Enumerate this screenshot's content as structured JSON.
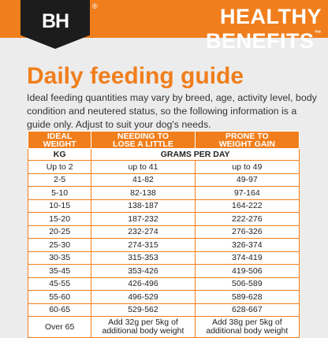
{
  "brand": {
    "logo_text": "BH",
    "registered_mark": "®"
  },
  "header": {
    "title": "HEALTHY BENEFITS",
    "trademark": "™"
  },
  "heading": "Daily feeding guide",
  "intro": "Ideal feeding quantities may vary by breed, age, activity level, body condition and neutered status, so the following information is a guide only. Adjust to suit your dog's needs.",
  "table": {
    "col1": [
      "IDEAL",
      "WEIGHT"
    ],
    "col2": [
      "NEEDING TO",
      "LOSE A LITTLE"
    ],
    "col3": [
      "PRONE TO",
      "WEIGHT GAIN"
    ],
    "unit": "KG",
    "subheader": "GRAMS PER DAY",
    "rows": [
      [
        "Up to 2",
        "up to 41",
        "up to 49"
      ],
      [
        "2-5",
        "41-82",
        "49-97"
      ],
      [
        "5-10",
        "82-138",
        "97-164"
      ],
      [
        "10-15",
        "138-187",
        "164-222"
      ],
      [
        "15-20",
        "187-232",
        "222-276"
      ],
      [
        "20-25",
        "232-274",
        "276-326"
      ],
      [
        "25-30",
        "274-315",
        "326-374"
      ],
      [
        "30-35",
        "315-353",
        "374-419"
      ],
      [
        "35-45",
        "353-426",
        "419-506"
      ],
      [
        "45-55",
        "426-496",
        "506-589"
      ],
      [
        "55-60",
        "496-529",
        "589-628"
      ],
      [
        "60-65",
        "529-562",
        "628-667"
      ]
    ],
    "last_row": {
      "weight": "Over 65",
      "lose": [
        "Add 32g per 5kg of",
        "additional body weight"
      ],
      "gain": [
        "Add 38g per 5kg of",
        "additional body weight"
      ]
    }
  }
}
